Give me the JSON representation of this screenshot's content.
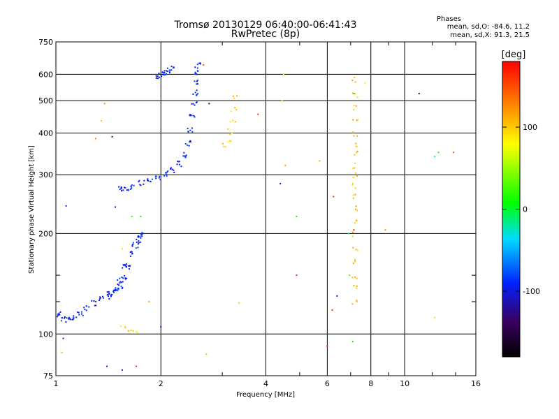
{
  "chart_data": {
    "type": "scatter",
    "title": "Tromsø 20130129 06:40:00-06:41:43",
    "subtitle": "RwPretec (8p)",
    "xlabel": "Frequency [MHz]",
    "ylabel": "Stationary phase Virtual Height [km]",
    "x_scale": "log",
    "y_scale": "log",
    "xlim": [
      1,
      16
    ],
    "ylim": [
      75,
      750
    ],
    "x_ticks": [
      "1",
      "2",
      "4",
      "6",
      "8",
      "10",
      "16"
    ],
    "y_ticks": [
      "75",
      "100",
      "200",
      "300",
      "400",
      "500",
      "600",
      "750"
    ],
    "grid": true,
    "stats": {
      "heading": "Phases",
      "line1": "mean, sd,O: -84.6, 11.2",
      "line2": "mean, sd,X:  91.3, 21.5"
    },
    "colorbar": {
      "label": "[deg]",
      "ticks": [
        "100",
        "0",
        "-100"
      ],
      "range": [
        -180,
        180
      ]
    },
    "traces": [
      {
        "f": [
          1.02,
          1.05,
          1.08,
          1.12,
          1.17,
          1.22,
          1.28,
          1.35,
          1.42,
          1.48,
          1.52,
          1.56
        ],
        "h": [
          115,
          112,
          111,
          112,
          116,
          120,
          124,
          128,
          132,
          138,
          145,
          160
        ],
        "phase": -100
      },
      {
        "f": [
          1.42,
          1.48,
          1.52,
          1.56,
          1.6,
          1.64,
          1.68,
          1.71,
          1.74,
          1.76
        ],
        "h": [
          130,
          135,
          140,
          148,
          160,
          175,
          185,
          190,
          195,
          200
        ],
        "phase": -100
      },
      {
        "f": [
          1.52,
          1.58,
          1.66,
          1.75,
          1.85,
          1.95,
          2.05,
          2.15,
          2.25,
          2.32,
          2.38,
          2.42,
          2.45,
          2.48,
          2.5,
          2.52,
          2.53,
          2.54
        ],
        "h": [
          272,
          274,
          278,
          284,
          290,
          296,
          303,
          312,
          325,
          345,
          375,
          410,
          450,
          490,
          530,
          570,
          610,
          640
        ],
        "phase": -100
      },
      {
        "f": [
          1.95,
          2.0,
          2.05,
          2.1,
          2.14
        ],
        "h": [
          590,
          600,
          610,
          620,
          630
        ],
        "phase": -100
      },
      {
        "f": [
          3.05,
          3.1,
          3.15,
          3.2,
          3.22,
          3.24
        ],
        "h": [
          370,
          385,
          405,
          430,
          470,
          520
        ],
        "phase": 100
      },
      {
        "f": [
          1.55,
          1.62,
          1.68
        ],
        "h": [
          104,
          104,
          103
        ],
        "phase": 100
      },
      {
        "f": [
          7.18,
          7.18,
          7.18,
          7.18,
          7.18,
          7.18,
          7.18,
          7.18,
          7.18,
          7.18,
          7.18,
          7.18,
          7.18,
          7.18,
          7.18,
          7.18,
          7.18,
          7.18,
          7.18
        ],
        "h": [
          580,
          520,
          480,
          440,
          400,
          370,
          350,
          320,
          300,
          280,
          260,
          240,
          220,
          200,
          180,
          165,
          150,
          140,
          125
        ],
        "phase": 110
      }
    ],
    "points": [
      {
        "f": 1.05,
        "h": 97,
        "phase": -100
      },
      {
        "f": 1.04,
        "h": 88,
        "phase": 40
      },
      {
        "f": 1.4,
        "h": 80,
        "phase": -110
      },
      {
        "f": 1.55,
        "h": 78,
        "phase": -100
      },
      {
        "f": 1.7,
        "h": 80,
        "phase": 170
      },
      {
        "f": 1.07,
        "h": 242,
        "phase": -100
      },
      {
        "f": 1.3,
        "h": 385,
        "phase": 130
      },
      {
        "f": 1.38,
        "h": 490,
        "phase": 130
      },
      {
        "f": 1.45,
        "h": 390,
        "phase": -140
      },
      {
        "f": 1.48,
        "h": 240,
        "phase": -110
      },
      {
        "f": 1.85,
        "h": 125,
        "phase": 120
      },
      {
        "f": 2.0,
        "h": 105,
        "phase": -110
      },
      {
        "f": 2.65,
        "h": 640,
        "phase": 150
      },
      {
        "f": 2.75,
        "h": 490,
        "phase": -150
      },
      {
        "f": 2.7,
        "h": 87,
        "phase": 110
      },
      {
        "f": 3.35,
        "h": 124,
        "phase": 40
      },
      {
        "f": 3.8,
        "h": 455,
        "phase": 160
      },
      {
        "f": 4.5,
        "h": 600,
        "phase": 90
      },
      {
        "f": 4.45,
        "h": 500,
        "phase": 90
      },
      {
        "f": 4.55,
        "h": 320,
        "phase": 120
      },
      {
        "f": 4.4,
        "h": 282,
        "phase": -120
      },
      {
        "f": 4.9,
        "h": 225,
        "phase": 0
      },
      {
        "f": 4.9,
        "h": 150,
        "phase": 165
      },
      {
        "f": 5.7,
        "h": 330,
        "phase": 120
      },
      {
        "f": 6.0,
        "h": 92,
        "phase": 170
      },
      {
        "f": 6.25,
        "h": 258,
        "phase": 160
      },
      {
        "f": 6.2,
        "h": 118,
        "phase": 160
      },
      {
        "f": 6.4,
        "h": 130,
        "phase": -120
      },
      {
        "f": 6.9,
        "h": 200,
        "phase": -20
      },
      {
        "f": 7.1,
        "h": 95,
        "phase": 0
      },
      {
        "f": 6.95,
        "h": 150,
        "phase": 20
      },
      {
        "f": 7.15,
        "h": 525,
        "phase": 10
      },
      {
        "f": 7.15,
        "h": 205,
        "phase": 170
      },
      {
        "f": 7.7,
        "h": 565,
        "phase": 70
      },
      {
        "f": 8.8,
        "h": 205,
        "phase": 130
      },
      {
        "f": 11.0,
        "h": 525,
        "phase": -130
      },
      {
        "f": 12.2,
        "h": 340,
        "phase": -20
      },
      {
        "f": 12.5,
        "h": 350,
        "phase": 0
      },
      {
        "f": 13.8,
        "h": 350,
        "phase": 150
      },
      {
        "f": 12.2,
        "h": 112,
        "phase": 50
      },
      {
        "f": 1.75,
        "h": 225,
        "phase": 0
      },
      {
        "f": 1.65,
        "h": 225,
        "phase": 10
      },
      {
        "f": 1.55,
        "h": 180,
        "phase": 60
      },
      {
        "f": 1.35,
        "h": 435,
        "phase": 110
      }
    ]
  }
}
